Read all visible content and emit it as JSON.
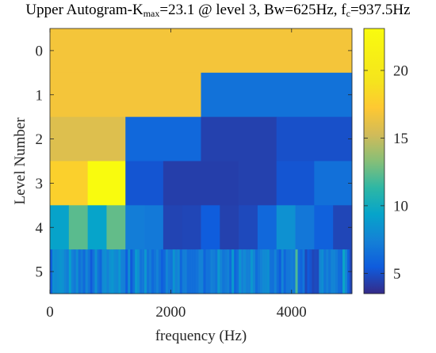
{
  "chart_data": {
    "type": "heatmap",
    "title": {
      "prefix": "Upper Autogram-K",
      "kmax_sub": "max",
      "kmax_value": "=23.1 @ level 3, Bw=625Hz, f",
      "fc_sub": "c",
      "fc_value": "=937.5Hz"
    },
    "xlabel": "frequency (Hz)",
    "ylabel": "Level Number",
    "xlim": [
      0,
      5000
    ],
    "xticks": [
      0,
      2000,
      4000
    ],
    "xtick_labels": [
      "0",
      "2000",
      "4000"
    ],
    "levels": [
      0,
      1,
      2,
      3,
      4,
      5
    ],
    "level_labels": [
      "0",
      "1",
      "2",
      "3",
      "4",
      "5"
    ],
    "colorbar": {
      "range": [
        3.5,
        23.1
      ],
      "ticks": [
        5,
        10,
        15,
        20
      ],
      "tick_labels": [
        "5",
        "10",
        "15",
        "20"
      ],
      "colormap": "parula"
    },
    "rows": [
      [
        16.8
      ],
      [
        16.8,
        6.6
      ],
      [
        15.8,
        6.1,
        4.4,
        5.0
      ],
      [
        17.8,
        23.1,
        5.2,
        4.3,
        4.3,
        4.4,
        5.2,
        6.5
      ],
      [
        9.3,
        12.3,
        9.4,
        12.5,
        7.2,
        7.0,
        4.5,
        4.6,
        5.5,
        4.4,
        4.7,
        6.1,
        8.3,
        6.9,
        5.7,
        4.6
      ],
      [
        5.6,
        8.2,
        8.0,
        8.2,
        8.5,
        8.3,
        7.6,
        7.2,
        9.2,
        7.5,
        7.0,
        8.1,
        6.5,
        7.1,
        6.2,
        7.7,
        6.8,
        5.4,
        6.6,
        8.3,
        6.6,
        6.0,
        7.9,
        8.2,
        7.4,
        8.3,
        8.6,
        8.0,
        7.7,
        8.7,
        7.4,
        7.3,
        5.6,
        8.1,
        5.4,
        6.6,
        8.8,
        8.1,
        6.7,
        6.9,
        8.6,
        6.6,
        7.2,
        6.2,
        6.8,
        7.5,
        6.6,
        5.6,
        6.1,
        7.7,
        6.9,
        6.7,
        8.5,
        7.4,
        7.9,
        6.0,
        7.2,
        7.3,
        6.4,
        6.4,
        6.4,
        6.4,
        6.7,
        7.4,
        7.5,
        5.9,
        6.7,
        6.7,
        7.4,
        7.2,
        6.7,
        8.7,
        7.6,
        6.8,
        7.1,
        7.5,
        6.2,
        8.8,
        6.0,
        6.5,
        8.4,
        7.4,
        7.9,
        7.3,
        7.3,
        8.6,
        7.7,
        6.3,
        6.9,
        7.4,
        7.9,
        7.9,
        8.2,
        6.6,
        6.5,
        7.5,
        6.4,
        5.5,
        7.6,
        6.0,
        6.9,
        6.9,
        7.2,
        6.9,
        12.0,
        6.3,
        5.9,
        6.8,
        4.7,
        5.4,
        5.1,
        4.6,
        4.8,
        4.7,
        7.7,
        8.1,
        6.8,
        7.4,
        6.8,
        7.6,
        7.6,
        7.1,
        6.3,
        6.2,
        9.6,
        7.7,
        5.7,
        4.6
      ]
    ]
  }
}
